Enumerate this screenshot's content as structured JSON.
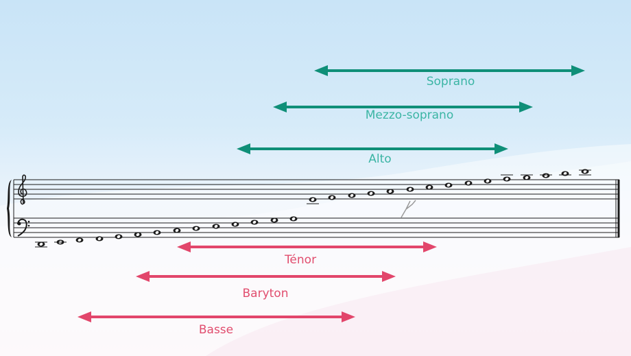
{
  "colors": {
    "female_range": "#0f8f78",
    "female_label": "#3bb5a4",
    "male_range": "#e2466b",
    "male_label": "#e14d6e",
    "staff": "#1a1a1a"
  },
  "icons": {
    "clefs": [
      "treble-clef-icon",
      "bass-clef-icon"
    ],
    "brace": "brace-icon",
    "tuning_fork": "tuning-fork-icon"
  },
  "voice_ranges": [
    {
      "label": "Soprano"
    },
    {
      "label": "Mezzo-soprano"
    },
    {
      "label": "Alto"
    },
    {
      "label": "Ténor"
    },
    {
      "label": "Baryton"
    },
    {
      "label": "Basse"
    }
  ]
}
